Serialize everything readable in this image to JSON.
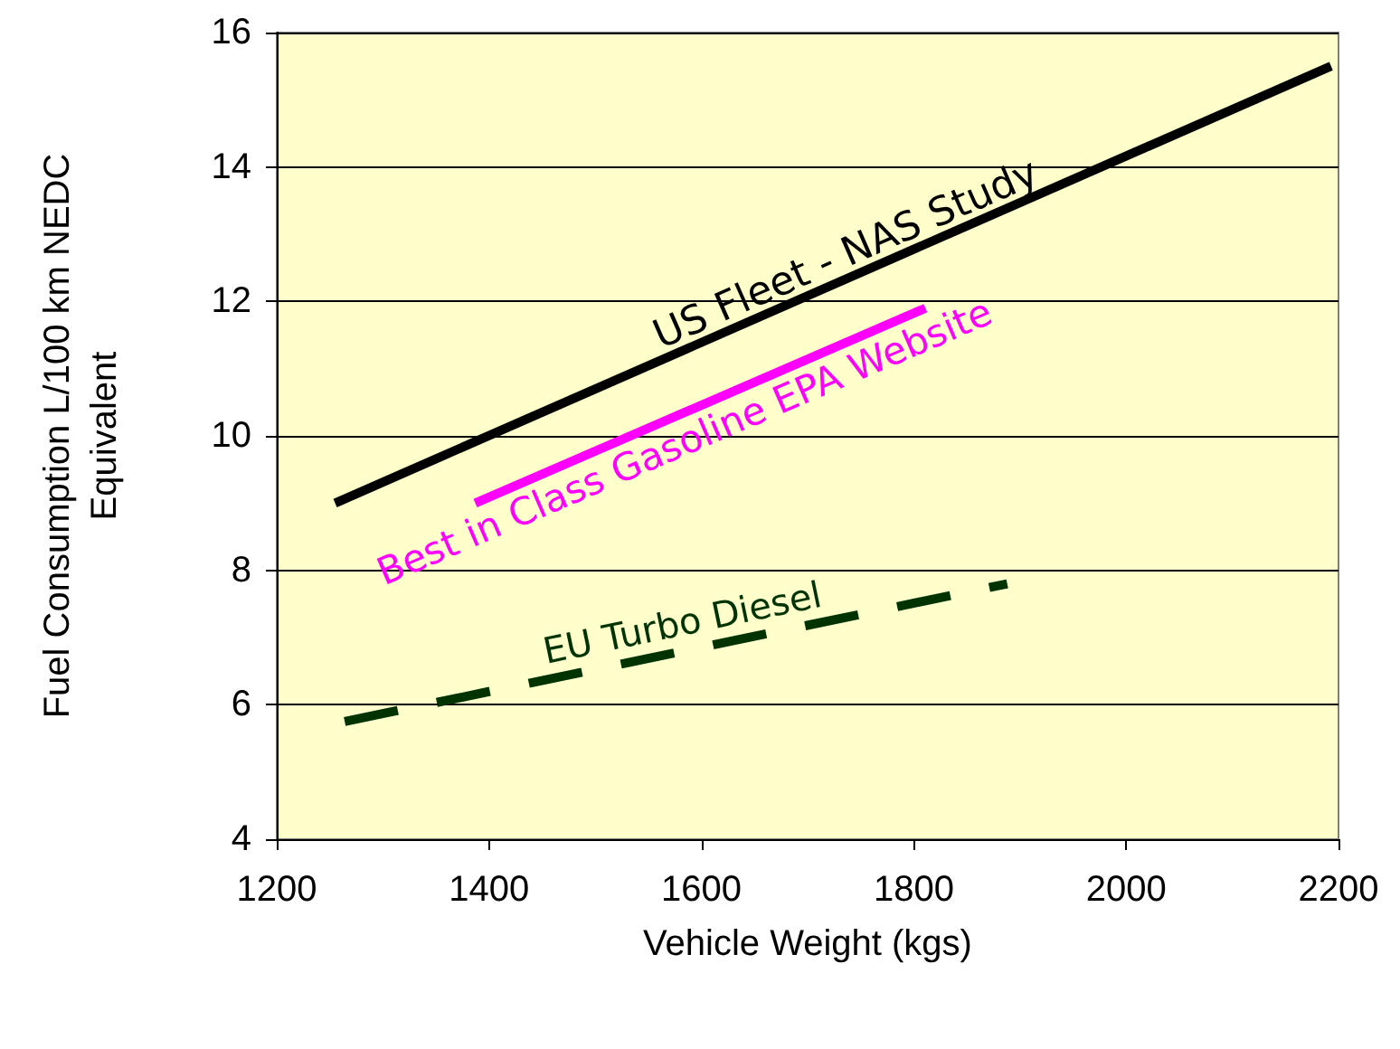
{
  "chart_data": {
    "type": "line",
    "xlabel": "Vehicle Weight (kgs)",
    "ylabel": "Fuel Consumption L/100 km NEDC\nEquivalent",
    "xlim": [
      1200,
      2200
    ],
    "xticks": [
      1200,
      1400,
      1600,
      1800,
      2000,
      2200
    ],
    "ylim": [
      4,
      16
    ],
    "yticks": [
      4,
      6,
      8,
      10,
      12,
      14,
      16
    ],
    "grid": "y",
    "legend": false,
    "marker": "none",
    "series": [
      {
        "name": "US Fleet - NAS Study",
        "color": "#000000",
        "x": [
          1255,
          2193
        ],
        "values": [
          9.0,
          15.5
        ],
        "line_style": "solid"
      },
      {
        "name": "Best in Class Gasoline EPA Website",
        "color": "#ff00ff",
        "x": [
          1387,
          1811
        ],
        "values": [
          9.0,
          11.9
        ],
        "line_style": "solid"
      },
      {
        "name": "EU Turbo Diesel",
        "color": "#003300",
        "x": [
          1264,
          1888
        ],
        "values": [
          5.75,
          7.8
        ],
        "line_style": "dashed"
      }
    ]
  }
}
